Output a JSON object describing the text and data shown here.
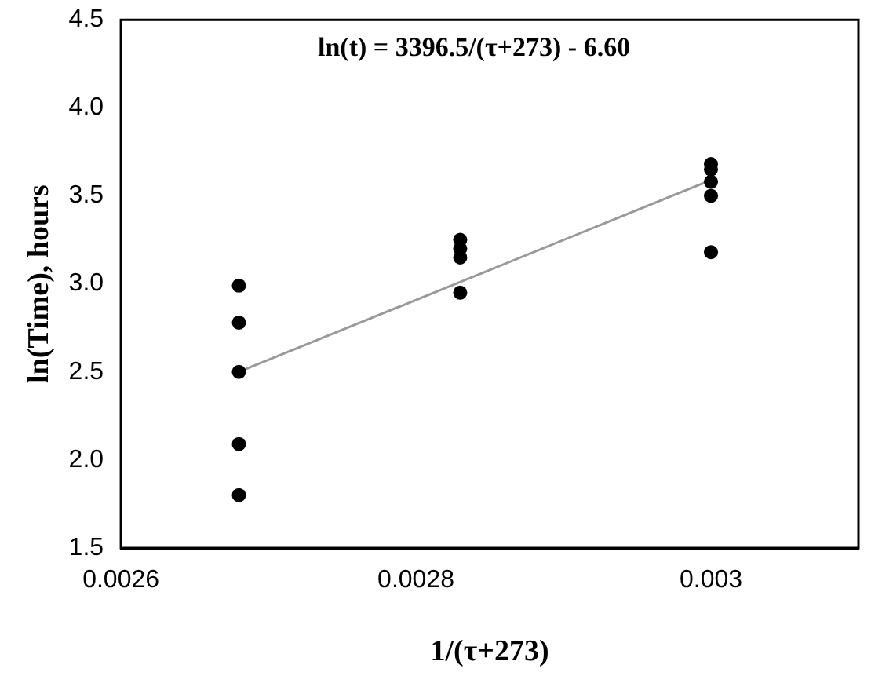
{
  "chart_data": {
    "type": "scatter",
    "xlabel": "1/(τ+273)",
    "ylabel": "ln(Time), hours",
    "annotations": [
      "ln(t) = 3396.5/(τ+273) - 6.60"
    ],
    "series": [
      {
        "type": "scatter",
        "marker": "circle",
        "color": "#000000",
        "x": [
          0.00268,
          0.00268,
          0.00268,
          0.00268,
          0.00268,
          0.00283,
          0.00283,
          0.00283,
          0.00283,
          0.003,
          0.003,
          0.003,
          0.003,
          0.003
        ],
        "values": [
          2.99,
          2.78,
          2.5,
          2.09,
          1.8,
          3.25,
          3.2,
          3.15,
          2.95,
          3.68,
          3.65,
          3.58,
          3.5,
          3.18
        ]
      },
      {
        "type": "line",
        "color": "#999999",
        "x": [
          0.00268,
          0.003
        ],
        "values": [
          2.5,
          3.59
        ]
      }
    ],
    "xlim": [
      0.0026,
      0.0031
    ],
    "xticks": [
      0.0026,
      0.0028,
      0.003
    ],
    "ylim": [
      1.5,
      4.5
    ],
    "yticks": [
      1.5,
      {
        "value": 2,
        "label": "2.0"
      },
      2.5,
      {
        "value": 3,
        "label": "3.0"
      },
      3.5,
      {
        "value": 4,
        "label": "4.0"
      },
      4.5
    ],
    "grid": false,
    "legend": false
  }
}
